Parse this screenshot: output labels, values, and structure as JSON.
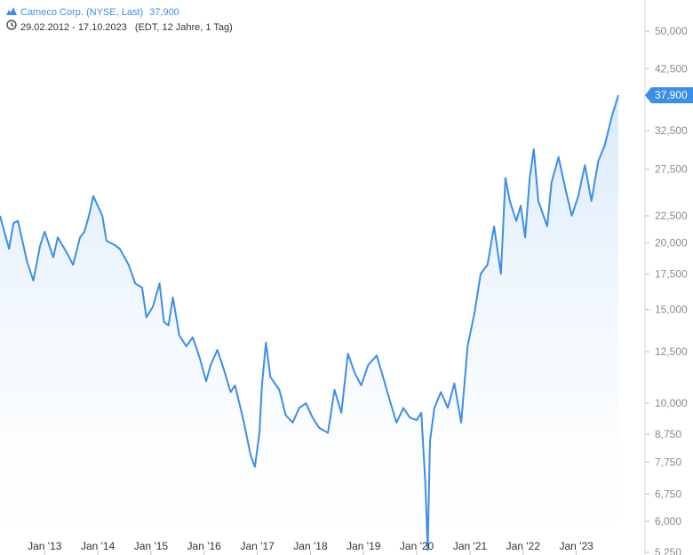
{
  "legend": {
    "series_name": "Cameco Corp. (NYSE, Last)",
    "last_value": "37,900",
    "date_range": "29.02.2012 - 17.10.2023",
    "range_note": "(EDT, 12 Jahre, 1 Tag)",
    "series_icon": "mountain-chart-icon",
    "range_icon": "clock-icon"
  },
  "colors": {
    "line": "#3d8ee6",
    "fill_top": "#d8e9fb",
    "last_badge": "#3d8ee6"
  },
  "chart_data": {
    "type": "area",
    "y_scale": "log",
    "ylim": [
      5.25,
      55
    ],
    "xlim": [
      "2012-02-29",
      "2023-10-17"
    ],
    "x_tick_labels": [
      "Jan '13",
      "Jan '14",
      "Jan '15",
      "Jan '16",
      "Jan '17",
      "Jan '18",
      "Jan '19",
      "Jan '20",
      "Jan '21",
      "Jan '22",
      "Jan '23"
    ],
    "y_tick_labels": [
      "50,000",
      "42,500",
      "32,500",
      "27,500",
      "22,500",
      "20,000",
      "17,500",
      "15,000",
      "12,500",
      "10,000",
      "8,750",
      "7,750",
      "6,750",
      "6,000",
      "5,250"
    ],
    "last_value_label": "37,900",
    "series": [
      {
        "name": "Cameco Corp. (NYSE, Last)",
        "x": [
          "2012-02-29",
          "2012-05-01",
          "2012-06-01",
          "2012-07-01",
          "2012-09-01",
          "2012-10-15",
          "2012-12-01",
          "2013-01-01",
          "2013-03-01",
          "2013-04-01",
          "2013-06-01",
          "2013-07-15",
          "2013-09-01",
          "2013-10-01",
          "2013-11-01",
          "2013-12-01",
          "2014-02-01",
          "2014-03-01",
          "2014-05-01",
          "2014-06-01",
          "2014-08-01",
          "2014-09-15",
          "2014-11-01",
          "2014-12-01",
          "2015-01-15",
          "2015-03-01",
          "2015-04-01",
          "2015-05-01",
          "2015-06-01",
          "2015-07-15",
          "2015-09-01",
          "2015-10-15",
          "2015-12-01",
          "2016-01-15",
          "2016-02-15",
          "2016-04-01",
          "2016-05-15",
          "2016-07-01",
          "2016-08-01",
          "2016-10-01",
          "2016-11-15",
          "2016-12-15",
          "2017-01-15",
          "2017-02-01",
          "2017-03-01",
          "2017-04-01",
          "2017-06-01",
          "2017-07-15",
          "2017-09-01",
          "2017-10-15",
          "2017-12-01",
          "2018-01-15",
          "2018-03-01",
          "2018-05-01",
          "2018-06-15",
          "2018-08-01",
          "2018-09-15",
          "2018-11-01",
          "2018-12-15",
          "2019-02-01",
          "2019-04-01",
          "2019-05-15",
          "2019-07-01",
          "2019-08-15",
          "2019-10-01",
          "2019-11-15",
          "2020-01-01",
          "2020-02-01",
          "2020-03-01",
          "2020-03-16",
          "2020-04-01",
          "2020-05-01",
          "2020-06-15",
          "2020-08-01",
          "2020-09-15",
          "2020-11-01",
          "2020-12-15",
          "2021-02-01",
          "2021-03-15",
          "2021-05-01",
          "2021-06-15",
          "2021-08-01",
          "2021-09-01",
          "2021-10-01",
          "2021-11-15",
          "2021-12-15",
          "2022-01-15",
          "2022-02-15",
          "2022-03-15",
          "2022-04-15",
          "2022-06-15",
          "2022-07-15",
          "2022-09-01",
          "2022-10-15",
          "2022-12-01",
          "2023-01-15",
          "2023-03-01",
          "2023-04-15",
          "2023-06-01",
          "2023-07-15",
          "2023-09-01",
          "2023-10-17"
        ],
        "y": [
          22.5,
          19.5,
          21.8,
          22.0,
          18.5,
          17.0,
          19.8,
          21.0,
          18.8,
          20.5,
          19.2,
          18.2,
          20.5,
          21.0,
          22.5,
          24.5,
          22.5,
          20.2,
          19.8,
          19.5,
          18.2,
          16.8,
          16.5,
          14.5,
          15.2,
          16.8,
          14.2,
          14.0,
          15.8,
          13.4,
          12.8,
          13.3,
          12.2,
          11.0,
          11.8,
          12.6,
          11.6,
          10.5,
          10.8,
          9.2,
          8.0,
          7.6,
          8.8,
          10.8,
          13.0,
          11.2,
          10.6,
          9.5,
          9.2,
          9.8,
          10.0,
          9.4,
          9.0,
          8.8,
          10.6,
          9.6,
          12.4,
          11.4,
          10.8,
          11.8,
          12.3,
          11.2,
          10.1,
          9.2,
          9.8,
          9.4,
          9.3,
          9.6,
          7.0,
          5.3,
          8.5,
          9.8,
          10.5,
          9.8,
          10.9,
          9.2,
          12.8,
          14.8,
          17.5,
          18.2,
          21.5,
          17.5,
          26.5,
          24.0,
          22.0,
          23.5,
          20.5,
          26.5,
          30.0,
          24.0,
          21.5,
          26.0,
          29.0,
          25.5,
          22.5,
          24.5,
          28.0,
          24.0,
          28.5,
          30.5,
          34.5,
          37.9
        ]
      }
    ]
  }
}
